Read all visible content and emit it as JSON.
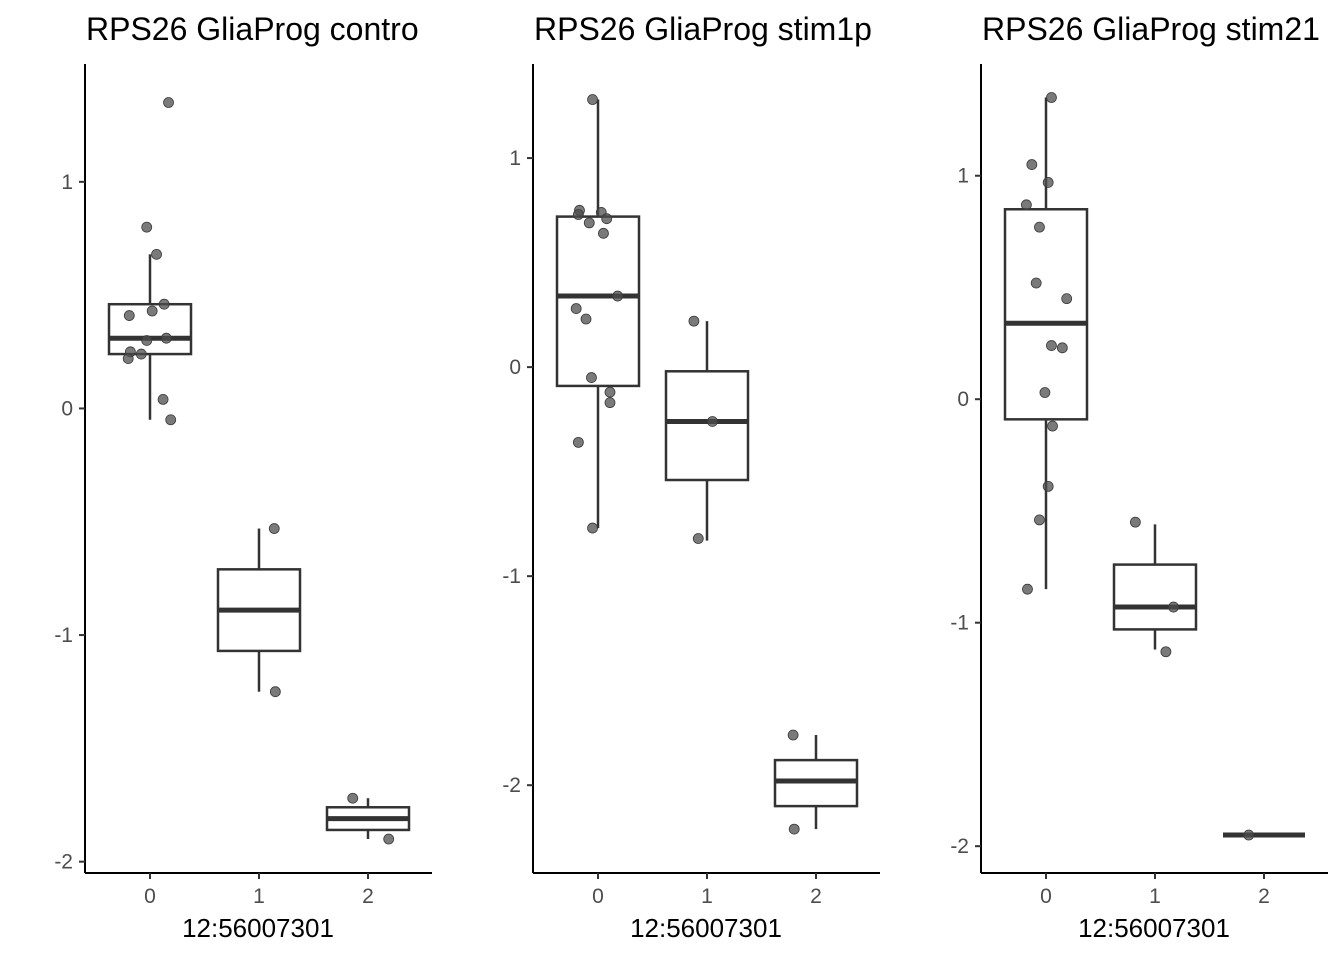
{
  "colors": {
    "background": "#ffffff",
    "box_stroke": "#333333",
    "point_fill": "#4d4d4d",
    "axis": "#000000",
    "tick_text": "#4d4d4d"
  },
  "chart_data": [
    {
      "type": "boxplot",
      "title": "RPS26 GliaProg contro",
      "xlabel": "12:56007301",
      "ylabel": "",
      "categories": [
        "0",
        "1",
        "2"
      ],
      "ylim": [
        -2.05,
        1.52
      ],
      "yticks": [
        -2,
        -1,
        0,
        1
      ],
      "ytick_labels": [
        "-2",
        "-1",
        "0",
        "1"
      ],
      "grid": false,
      "legend": "none",
      "boxes": [
        {
          "category": "0",
          "q1": 0.24,
          "median": 0.31,
          "q3": 0.46,
          "whisker_low": -0.05,
          "whisker_high": 0.68
        },
        {
          "category": "1",
          "q1": -1.07,
          "median": -0.89,
          "q3": -0.71,
          "whisker_low": -1.25,
          "whisker_high": -0.53
        },
        {
          "category": "2",
          "q1": -1.86,
          "median": -1.81,
          "q3": -1.76,
          "whisker_low": -1.9,
          "whisker_high": -1.72
        }
      ],
      "points": [
        {
          "category": "0",
          "jitter": 0.17,
          "y": 1.35
        },
        {
          "category": "0",
          "jitter": -0.03,
          "y": 0.8
        },
        {
          "category": "0",
          "jitter": 0.06,
          "y": 0.68
        },
        {
          "category": "0",
          "jitter": 0.13,
          "y": 0.46
        },
        {
          "category": "0",
          "jitter": 0.02,
          "y": 0.43
        },
        {
          "category": "0",
          "jitter": -0.19,
          "y": 0.41
        },
        {
          "category": "0",
          "jitter": 0.15,
          "y": 0.31
        },
        {
          "category": "0",
          "jitter": -0.03,
          "y": 0.3
        },
        {
          "category": "0",
          "jitter": -0.18,
          "y": 0.25
        },
        {
          "category": "0",
          "jitter": -0.08,
          "y": 0.24
        },
        {
          "category": "0",
          "jitter": -0.2,
          "y": 0.22
        },
        {
          "category": "0",
          "jitter": 0.12,
          "y": 0.04
        },
        {
          "category": "0",
          "jitter": 0.19,
          "y": -0.05
        },
        {
          "category": "1",
          "jitter": 0.14,
          "y": -0.53
        },
        {
          "category": "1",
          "jitter": 0.15,
          "y": -1.25
        },
        {
          "category": "2",
          "jitter": -0.14,
          "y": -1.72
        },
        {
          "category": "2",
          "jitter": 0.19,
          "y": -1.9
        }
      ]
    },
    {
      "type": "boxplot",
      "title": "RPS26 GliaProg stim1p",
      "xlabel": "12:56007301",
      "ylabel": "",
      "categories": [
        "0",
        "1",
        "2"
      ],
      "ylim": [
        -2.42,
        1.45
      ],
      "yticks": [
        -2,
        -1,
        0,
        1
      ],
      "ytick_labels": [
        "-2",
        "-1",
        "0",
        "1"
      ],
      "grid": false,
      "legend": "none",
      "boxes": [
        {
          "category": "0",
          "q1": -0.09,
          "median": 0.34,
          "q3": 0.72,
          "whisker_low": -0.77,
          "whisker_high": 1.28
        },
        {
          "category": "1",
          "q1": -0.54,
          "median": -0.26,
          "q3": -0.02,
          "whisker_low": -0.83,
          "whisker_high": 0.22
        },
        {
          "category": "2",
          "q1": -2.1,
          "median": -1.98,
          "q3": -1.88,
          "whisker_low": -2.21,
          "whisker_high": -1.76
        }
      ],
      "points": [
        {
          "category": "0",
          "jitter": -0.05,
          "y": 1.28
        },
        {
          "category": "0",
          "jitter": -0.17,
          "y": 0.75
        },
        {
          "category": "0",
          "jitter": 0.03,
          "y": 0.74
        },
        {
          "category": "0",
          "jitter": -0.18,
          "y": 0.73
        },
        {
          "category": "0",
          "jitter": 0.08,
          "y": 0.71
        },
        {
          "category": "0",
          "jitter": -0.08,
          "y": 0.69
        },
        {
          "category": "0",
          "jitter": 0.05,
          "y": 0.64
        },
        {
          "category": "0",
          "jitter": 0.18,
          "y": 0.34
        },
        {
          "category": "0",
          "jitter": -0.2,
          "y": 0.28
        },
        {
          "category": "0",
          "jitter": -0.11,
          "y": 0.23
        },
        {
          "category": "0",
          "jitter": -0.06,
          "y": -0.05
        },
        {
          "category": "0",
          "jitter": 0.11,
          "y": -0.12
        },
        {
          "category": "0",
          "jitter": 0.11,
          "y": -0.17
        },
        {
          "category": "0",
          "jitter": -0.18,
          "y": -0.36
        },
        {
          "category": "0",
          "jitter": -0.05,
          "y": -0.77
        },
        {
          "category": "1",
          "jitter": -0.12,
          "y": 0.22
        },
        {
          "category": "1",
          "jitter": 0.05,
          "y": -0.26
        },
        {
          "category": "1",
          "jitter": -0.08,
          "y": -0.82
        },
        {
          "category": "2",
          "jitter": -0.21,
          "y": -1.76
        },
        {
          "category": "2",
          "jitter": -0.2,
          "y": -2.21
        }
      ]
    },
    {
      "type": "boxplot",
      "title": "RPS26 GliaProg stim21",
      "xlabel": "12:56007301",
      "ylabel": "",
      "categories": [
        "0",
        "1",
        "2"
      ],
      "ylim": [
        -2.12,
        1.5
      ],
      "yticks": [
        -2,
        -1,
        0,
        1
      ],
      "ytick_labels": [
        "-2",
        "-1",
        "0",
        "1"
      ],
      "grid": false,
      "legend": "none",
      "boxes": [
        {
          "category": "0",
          "q1": -0.09,
          "median": 0.34,
          "q3": 0.85,
          "whisker_low": -0.85,
          "whisker_high": 1.35
        },
        {
          "category": "1",
          "q1": -1.03,
          "median": -0.93,
          "q3": -0.74,
          "whisker_low": -1.12,
          "whisker_high": -0.56
        },
        {
          "category": "2",
          "q1": -1.95,
          "median": -1.95,
          "q3": -1.95,
          "whisker_low": -1.95,
          "whisker_high": -1.95
        }
      ],
      "points": [
        {
          "category": "0",
          "jitter": 0.05,
          "y": 1.35
        },
        {
          "category": "0",
          "jitter": -0.13,
          "y": 1.05
        },
        {
          "category": "0",
          "jitter": 0.02,
          "y": 0.97
        },
        {
          "category": "0",
          "jitter": -0.18,
          "y": 0.87
        },
        {
          "category": "0",
          "jitter": -0.06,
          "y": 0.77
        },
        {
          "category": "0",
          "jitter": -0.09,
          "y": 0.52
        },
        {
          "category": "0",
          "jitter": 0.19,
          "y": 0.45
        },
        {
          "category": "0",
          "jitter": 0.05,
          "y": 0.24
        },
        {
          "category": "0",
          "jitter": 0.15,
          "y": 0.23
        },
        {
          "category": "0",
          "jitter": -0.01,
          "y": 0.03
        },
        {
          "category": "0",
          "jitter": 0.06,
          "y": -0.12
        },
        {
          "category": "0",
          "jitter": 0.02,
          "y": -0.39
        },
        {
          "category": "0",
          "jitter": -0.06,
          "y": -0.54
        },
        {
          "category": "0",
          "jitter": -0.17,
          "y": -0.85
        },
        {
          "category": "1",
          "jitter": -0.18,
          "y": -0.55
        },
        {
          "category": "1",
          "jitter": 0.17,
          "y": -0.93
        },
        {
          "category": "1",
          "jitter": 0.1,
          "y": -1.13
        },
        {
          "category": "2",
          "jitter": -0.14,
          "y": -1.95
        }
      ]
    }
  ]
}
